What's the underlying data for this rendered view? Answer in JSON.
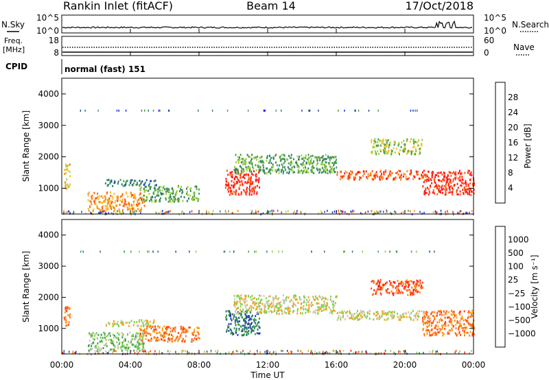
{
  "header": {
    "station": "Rankin Inlet (fitACF)",
    "beam": "Beam 14",
    "date": "17/Oct/2018"
  },
  "noise_panel": {
    "left_label": "N.Sky",
    "right_label": "N.Search",
    "left_ticks": [
      "10^5",
      "10^0"
    ],
    "right_ticks": [
      "10^5",
      "10^0"
    ]
  },
  "freq_panel": {
    "left_label_1": "Freq.",
    "left_label_2": "[MHz]",
    "right_label": "Nave",
    "left_ticks": [
      "18",
      "8"
    ],
    "right_ticks": [
      "60",
      "0"
    ]
  },
  "cpid_panel": {
    "label": "CPID",
    "mode": "normal (fast) 151"
  },
  "colors": {
    "power_scale": [
      "#1428ff",
      "#1f47a8",
      "#2f7f6a",
      "#4a9e4a",
      "#9ed13a",
      "#f2c12e",
      "#ff8c1a",
      "#ff5a14",
      "#ff1a14"
    ],
    "velocity_scale": [
      "#1f3fa5",
      "#2e6d6e",
      "#3c9f4a",
      "#7ed242",
      "#c9c9bf",
      "#f6a21c",
      "#ff7a17",
      "#ff4816",
      "#ff1a12"
    ]
  },
  "chart_data": [
    {
      "type": "heatmap",
      "name_role": "power",
      "ylabel": "Slant Range [km]",
      "colorbar_label": "Power [dB]",
      "colorbar_ticks": [
        "4",
        "8",
        "12",
        "16",
        "20",
        "24",
        "28"
      ],
      "xlim_hours": [
        0,
        24
      ],
      "ylim_km": [
        180,
        4500
      ],
      "yticks": [
        "1000",
        "2000",
        "3000",
        "4000"
      ],
      "regions": [
        {
          "t0": 0.1,
          "t1": 0.45,
          "r0": 1000,
          "r1": 1800,
          "level": 5
        },
        {
          "t0": 1.5,
          "t1": 4.8,
          "r0": 300,
          "r1": 900,
          "level": 6
        },
        {
          "t0": 2.5,
          "t1": 5.5,
          "r0": 1100,
          "r1": 1300,
          "level": 2
        },
        {
          "t0": 4.5,
          "t1": 8.0,
          "r0": 600,
          "r1": 1100,
          "level": 3
        },
        {
          "t0": 9.5,
          "t1": 11.5,
          "r0": 800,
          "r1": 1600,
          "level": 8
        },
        {
          "t0": 10.0,
          "t1": 16.0,
          "r0": 1500,
          "r1": 2100,
          "level": 3
        },
        {
          "t0": 16.0,
          "t1": 21.0,
          "r0": 1300,
          "r1": 1600,
          "level": 7
        },
        {
          "t0": 18.0,
          "t1": 21.0,
          "r0": 2100,
          "r1": 2600,
          "level": 4
        },
        {
          "t0": 21.0,
          "t1": 24.0,
          "r0": 800,
          "r1": 1600,
          "level": 8
        }
      ]
    },
    {
      "type": "heatmap",
      "name_role": "velocity",
      "ylabel": "Slant Range [km]",
      "colorbar_label": "Velocity [m s⁻¹]",
      "colorbar_ticks": [
        "1000",
        "500",
        "100",
        "25",
        "−25",
        "−100",
        "−500",
        "−1000"
      ],
      "xlim_hours": [
        0,
        24
      ],
      "ylim_km": [
        180,
        4500
      ],
      "yticks": [
        "1000",
        "2000",
        "3000",
        "4000"
      ],
      "regions": [
        {
          "t0": 0.1,
          "t1": 0.45,
          "r0": 1000,
          "r1": 1800,
          "level": 6
        },
        {
          "t0": 1.5,
          "t1": 4.8,
          "r0": 300,
          "r1": 900,
          "level": 3
        },
        {
          "t0": 2.5,
          "t1": 5.5,
          "r0": 1100,
          "r1": 1300,
          "level": 4
        },
        {
          "t0": 4.5,
          "t1": 8.0,
          "r0": 600,
          "r1": 1100,
          "level": 6
        },
        {
          "t0": 9.5,
          "t1": 11.5,
          "r0": 800,
          "r1": 1600,
          "level": 1
        },
        {
          "t0": 10.0,
          "t1": 16.0,
          "r0": 1500,
          "r1": 2100,
          "level": 4
        },
        {
          "t0": 16.0,
          "t1": 21.0,
          "r0": 1300,
          "r1": 1600,
          "level": 4
        },
        {
          "t0": 18.0,
          "t1": 21.0,
          "r0": 2100,
          "r1": 2600,
          "level": 7
        },
        {
          "t0": 21.0,
          "t1": 24.0,
          "r0": 800,
          "r1": 1600,
          "level": 6
        }
      ]
    }
  ],
  "xaxis": {
    "label": "Time UT",
    "ticks": [
      "00:00",
      "04:00",
      "08:00",
      "12:00",
      "16:00",
      "20:00",
      "00:00"
    ]
  }
}
